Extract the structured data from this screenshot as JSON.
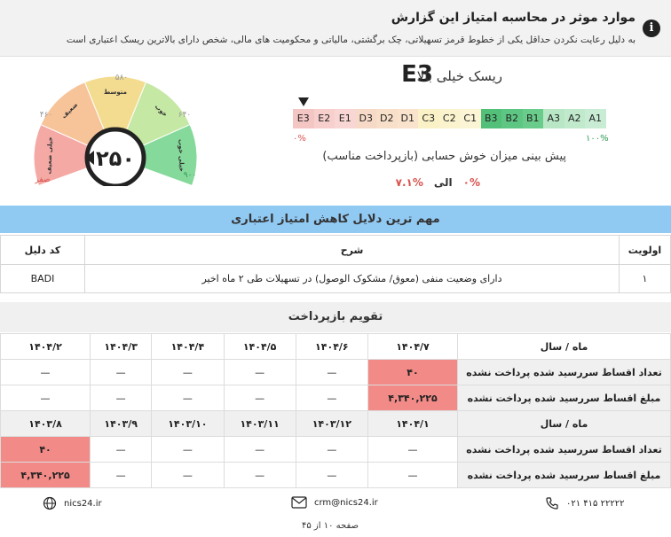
{
  "notice": {
    "title": "موارد موثر در محاسبه امتیاز این گزارش",
    "description": "به دلیل رعایت نکردن حداقل یکی از خطوط قرمز تسهیلاتی، چک برگشتی، مالیاتی و محکومیت های مالی، شخص دارای بالاترین ریسک اعتباری است",
    "icon": "info-icon"
  },
  "gauge": {
    "score": "۲۵۰",
    "ticks": {
      "min": "صفر",
      "t1": "۴۶۰",
      "t2": "۵۸۰",
      "t3": "۶۴۰",
      "max": "۹۰۰"
    },
    "bands": [
      {
        "label": "خیلی ضعیف",
        "color": "#f4a9a5"
      },
      {
        "label": "ضعیف",
        "color": "#f7c49a"
      },
      {
        "label": "متوسط",
        "color": "#f3dc8f"
      },
      {
        "label": "خوب",
        "color": "#c5e8a4"
      },
      {
        "label": "خیلی خوب",
        "color": "#85d99a"
      }
    ]
  },
  "risk": {
    "title": "ریسک خیلی بالا",
    "code": "E3",
    "scale": [
      {
        "label": "E3",
        "color": "#f4c6c3"
      },
      {
        "label": "E2",
        "color": "#f7d0cd"
      },
      {
        "label": "E1",
        "color": "#f7d6d3"
      },
      {
        "label": "D3",
        "color": "#f6dac7"
      },
      {
        "label": "D2",
        "color": "#f8dfc9"
      },
      {
        "label": "D1",
        "color": "#fae3cd"
      },
      {
        "label": "C3",
        "color": "#fbf1c6"
      },
      {
        "label": "C2",
        "color": "#fbf3cd"
      },
      {
        "label": "C1",
        "color": "#fcf5d5"
      },
      {
        "label": "B3",
        "color": "#53c07a"
      },
      {
        "label": "B2",
        "color": "#5ec683"
      },
      {
        "label": "B1",
        "color": "#69cc8b"
      },
      {
        "label": "A3",
        "color": "#b9e7c6"
      },
      {
        "label": "A2",
        "color": "#c1eacd"
      },
      {
        "label": "A1",
        "color": "#c9edd4"
      }
    ],
    "scale_min": "۰%",
    "scale_max": "۱۰۰%",
    "prediction_title": "پیش بینی میزان خوش حسابی (بازپرداخت مناسب)",
    "range_from": "۰%",
    "range_to_word": "الی",
    "range_to": "۷.۱%"
  },
  "reasons": {
    "header": "مهم ترین دلایل کاهش امتیاز اعتباری",
    "columns": [
      "اولویت",
      "شرح",
      "کد دلیل"
    ],
    "rows": [
      {
        "priority": "۱",
        "desc": "دارای وضعیت منفی (معوق/ مشکوک الوصول) در تسهیلات طی ۲ ماه اخیر",
        "code": "BADI"
      }
    ]
  },
  "calendar": {
    "header": "تقویم بازپرداخت",
    "row_label_month": "ماه / سال",
    "row_label_count": "تعداد اقساط سررسید شده پرداخت نشده",
    "row_label_amount": "مبلغ اقساط سررسید شده پرداخت نشده",
    "block1": {
      "months": [
        "۱۴۰۴/۷",
        "۱۴۰۴/۶",
        "۱۴۰۴/۵",
        "۱۴۰۴/۴",
        "۱۴۰۴/۳",
        "۱۴۰۴/۲"
      ],
      "counts": [
        "۴۰",
        "—",
        "—",
        "—",
        "—",
        "—"
      ],
      "amounts": [
        "۴,۳۴۰,۲۲۵",
        "—",
        "—",
        "—",
        "—",
        "—"
      ]
    },
    "block2": {
      "months": [
        "۱۴۰۴/۱",
        "۱۴۰۳/۱۲",
        "۱۴۰۳/۱۱",
        "۱۴۰۳/۱۰",
        "۱۴۰۳/۹",
        "۱۴۰۳/۸"
      ],
      "counts": [
        "—",
        "—",
        "—",
        "—",
        "—",
        "۴۰"
      ],
      "amounts": [
        "—",
        "—",
        "—",
        "—",
        "—",
        "۴,۳۴۰,۲۲۵"
      ]
    },
    "highlight_color": "#f28b87"
  },
  "footer": {
    "phone": "۰۲۱ ۴۱۵ ۲۲۲۲۲",
    "email": "crm@nics24.ir",
    "website": "nics24.ir",
    "page": "صفحه ۱۰ از ۴۵"
  }
}
